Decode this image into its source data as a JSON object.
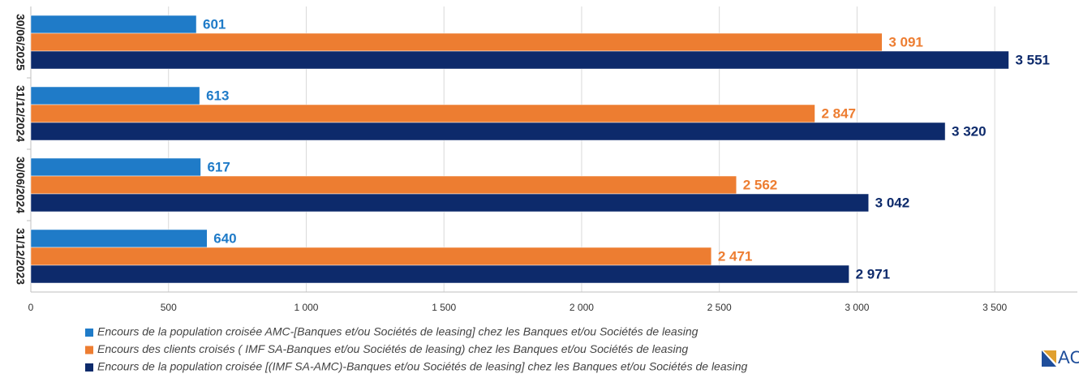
{
  "chart_data": {
    "type": "bar",
    "orientation": "horizontal",
    "categories": [
      "31/12/2023",
      "30/06/2024",
      "31/12/2024",
      "30/06/2025"
    ],
    "series": [
      {
        "name": "Encours de la population croisée AMC-[Banques et/ou Sociétés de leasing] chez les Banques et/ou Sociétés de leasing",
        "color": "#1f7bc8",
        "values": [
          640,
          617,
          613,
          601
        ],
        "value_labels": [
          "640",
          "617",
          "613",
          "601"
        ]
      },
      {
        "name": "Encours des clients croisés  ( IMF SA-Banques et/ou Sociétés de leasing) chez les Banques et/ou Sociétés de leasing",
        "color": "#ed7d31",
        "values": [
          2471,
          2562,
          2847,
          3091
        ],
        "value_labels": [
          "2 471",
          "2 562",
          "2 847",
          "3 091"
        ]
      },
      {
        "name": "Encours de la population croisée [(IMF SA-AMC)-Banques et/ou Sociétés de leasing] chez les Banques et/ou Sociétés de leasing",
        "color": "#0d2a6b",
        "values": [
          2971,
          3042,
          3320,
          3551
        ],
        "value_labels": [
          "2 971",
          "3 042",
          "3 320",
          "3 551"
        ]
      }
    ],
    "xlim": [
      0,
      3800
    ],
    "xticks": [
      0,
      500,
      {
        "value": 1000,
        "label": "1 000"
      },
      {
        "value": 1500,
        "label": "1 500"
      },
      {
        "value": 2000,
        "label": "2 000"
      },
      {
        "value": 2500,
        "label": "2 500"
      },
      {
        "value": 3000,
        "label": "3 000"
      },
      {
        "value": 3500,
        "label": "3 500"
      }
    ],
    "grid": true,
    "legend": "bottom",
    "logo_text": "AC"
  }
}
